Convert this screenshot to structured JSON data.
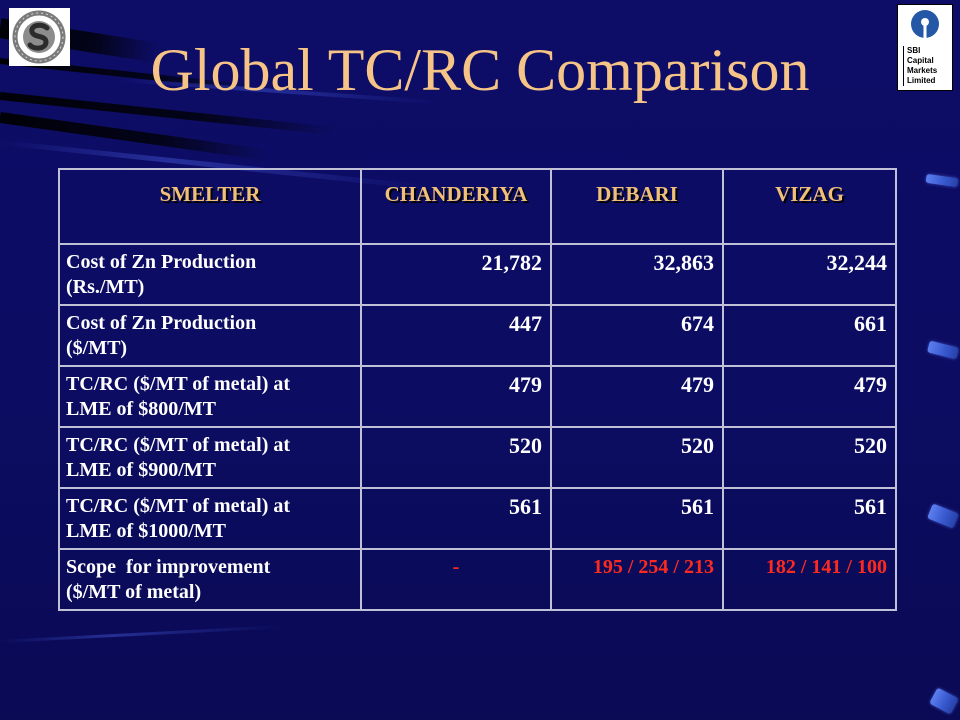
{
  "slide": {
    "title": "Global TC/RC Comparison"
  },
  "logos": {
    "left": {
      "icon": "sterlite-logo"
    },
    "right": {
      "icon": "sbi-emblem",
      "lines": [
        "SBI",
        "Capital",
        "Markets",
        "Limited"
      ]
    }
  },
  "colors": {
    "background": "#0c0c63",
    "title": "#f5c486",
    "header_text": "#f0bf78",
    "value_text": "#ffffff",
    "highlight_text": "#ff2a1f",
    "grid": "#c0c0d6"
  },
  "table": {
    "headers": [
      "SMELTER",
      "CHANDERIYA",
      "DEBARI",
      "VIZAG"
    ],
    "rows": [
      {
        "label": [
          "Cost of Zn Production",
          "(Rs./MT)"
        ],
        "values": [
          "21,782",
          "32,863",
          "32,244"
        ]
      },
      {
        "label": [
          "Cost of Zn Production",
          "($/MT)"
        ],
        "values": [
          "447",
          "674",
          "661"
        ]
      },
      {
        "label": [
          "TC/RC ($/MT of metal) at",
          "LME of $800/MT"
        ],
        "values": [
          "479",
          "479",
          "479"
        ]
      },
      {
        "label": [
          "TC/RC ($/MT of metal) at",
          "LME of $900/MT"
        ],
        "values": [
          "520",
          "520",
          "520"
        ]
      },
      {
        "label": [
          "TC/RC ($/MT of metal) at",
          "LME of $1000/MT"
        ],
        "values": [
          "561",
          "561",
          "561"
        ]
      },
      {
        "label": [
          "Scope  for improvement",
          "($/MT of metal)"
        ],
        "values": [
          "-",
          "195 / 254 / 213",
          "182 / 141 / 100"
        ]
      }
    ]
  }
}
